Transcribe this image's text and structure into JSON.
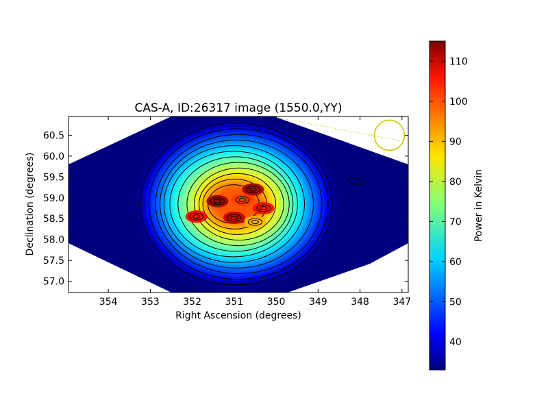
{
  "chart_data": {
    "type": "heatmap",
    "title": "CAS-A, ID:26317 image (1550.0,YY)",
    "xlabel": "Right Ascension (degrees)",
    "ylabel": "Declination (degrees)",
    "xlim": [
      354.95,
      346.85
    ],
    "ylim": [
      56.73,
      60.95
    ],
    "x_ticks": [
      "354",
      "353",
      "352",
      "351",
      "350",
      "349",
      "348",
      "347"
    ],
    "y_ticks": [
      "57.0",
      "57.5",
      "58.0",
      "58.5",
      "59.0",
      "59.5",
      "60.0",
      "60.5"
    ],
    "x_tick_values": [
      354,
      353,
      352,
      351,
      350,
      349,
      348,
      347
    ],
    "y_tick_values": [
      57.0,
      57.5,
      58.0,
      58.5,
      59.0,
      59.5,
      60.0,
      60.5
    ],
    "colormap": "jet",
    "background_level": 33,
    "colorbar": {
      "label": "Power in Kelvin",
      "min": 33,
      "max": 115,
      "ticks": [
        "40",
        "50",
        "60",
        "70",
        "80",
        "90",
        "100",
        "110"
      ],
      "tick_values": [
        40,
        50,
        60,
        70,
        80,
        90,
        100,
        110
      ]
    },
    "peaks": [
      {
        "ra": 351.4,
        "dec": 58.92,
        "value": 113
      },
      {
        "ra": 350.55,
        "dec": 59.2,
        "value": 112
      },
      {
        "ra": 351.0,
        "dec": 58.52,
        "value": 110
      },
      {
        "ra": 351.9,
        "dec": 58.55,
        "value": 105
      },
      {
        "ra": 350.3,
        "dec": 58.75,
        "value": 104
      },
      {
        "ra": 350.8,
        "dec": 58.95,
        "value": 100
      },
      {
        "ra": 350.5,
        "dec": 58.42,
        "value": 90
      }
    ],
    "beam_circle": {
      "ra": 347.3,
      "dec": 60.5
    },
    "grid": false
  }
}
